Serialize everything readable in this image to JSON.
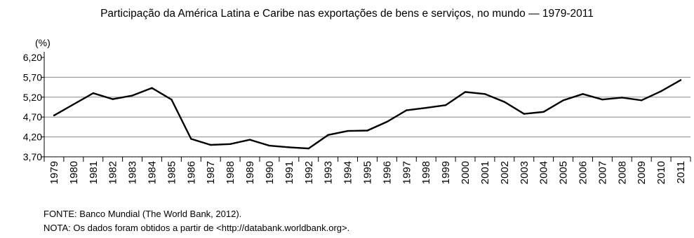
{
  "chart_data": {
    "type": "line",
    "title": "Participação da América Latina e Caribe nas exportações de bens e serviços, no mundo — 1979-2011",
    "ylabel": "(%)",
    "xlabel": "",
    "ylim": [
      3.7,
      6.2
    ],
    "yticks": [
      "6,20",
      "5,70",
      "5,20",
      "4,70",
      "4,20",
      "3,70"
    ],
    "ytick_values": [
      6.2,
      5.7,
      5.2,
      4.7,
      4.2,
      3.7
    ],
    "categories": [
      "1979",
      "1980",
      "1981",
      "1982",
      "1983",
      "1984",
      "1985",
      "1986",
      "1987",
      "1988",
      "1989",
      "1990",
      "1991",
      "1992",
      "1993",
      "1994",
      "1995",
      "1996",
      "1997",
      "1998",
      "1999",
      "2000",
      "2001",
      "2002",
      "2003",
      "2004",
      "2005",
      "2006",
      "2007",
      "2008",
      "2009",
      "2010",
      "2011"
    ],
    "values": [
      4.74,
      5.02,
      5.3,
      5.15,
      5.24,
      5.43,
      5.14,
      4.15,
      4.0,
      4.02,
      4.13,
      3.98,
      3.94,
      3.91,
      4.25,
      4.35,
      4.36,
      4.58,
      4.87,
      4.93,
      5.0,
      5.33,
      5.28,
      5.08,
      4.78,
      4.83,
      5.12,
      5.28,
      5.14,
      5.19,
      5.12,
      5.35,
      5.63
    ],
    "grid": true,
    "line_color": "#000000",
    "grid_color": "#888888"
  },
  "notes": {
    "source": "FONTE: Banco Mundial (The World Bank, 2012).",
    "nota": "NOTA: Os dados foram obtidos a partir de <http://databank.worldbank.org>."
  }
}
